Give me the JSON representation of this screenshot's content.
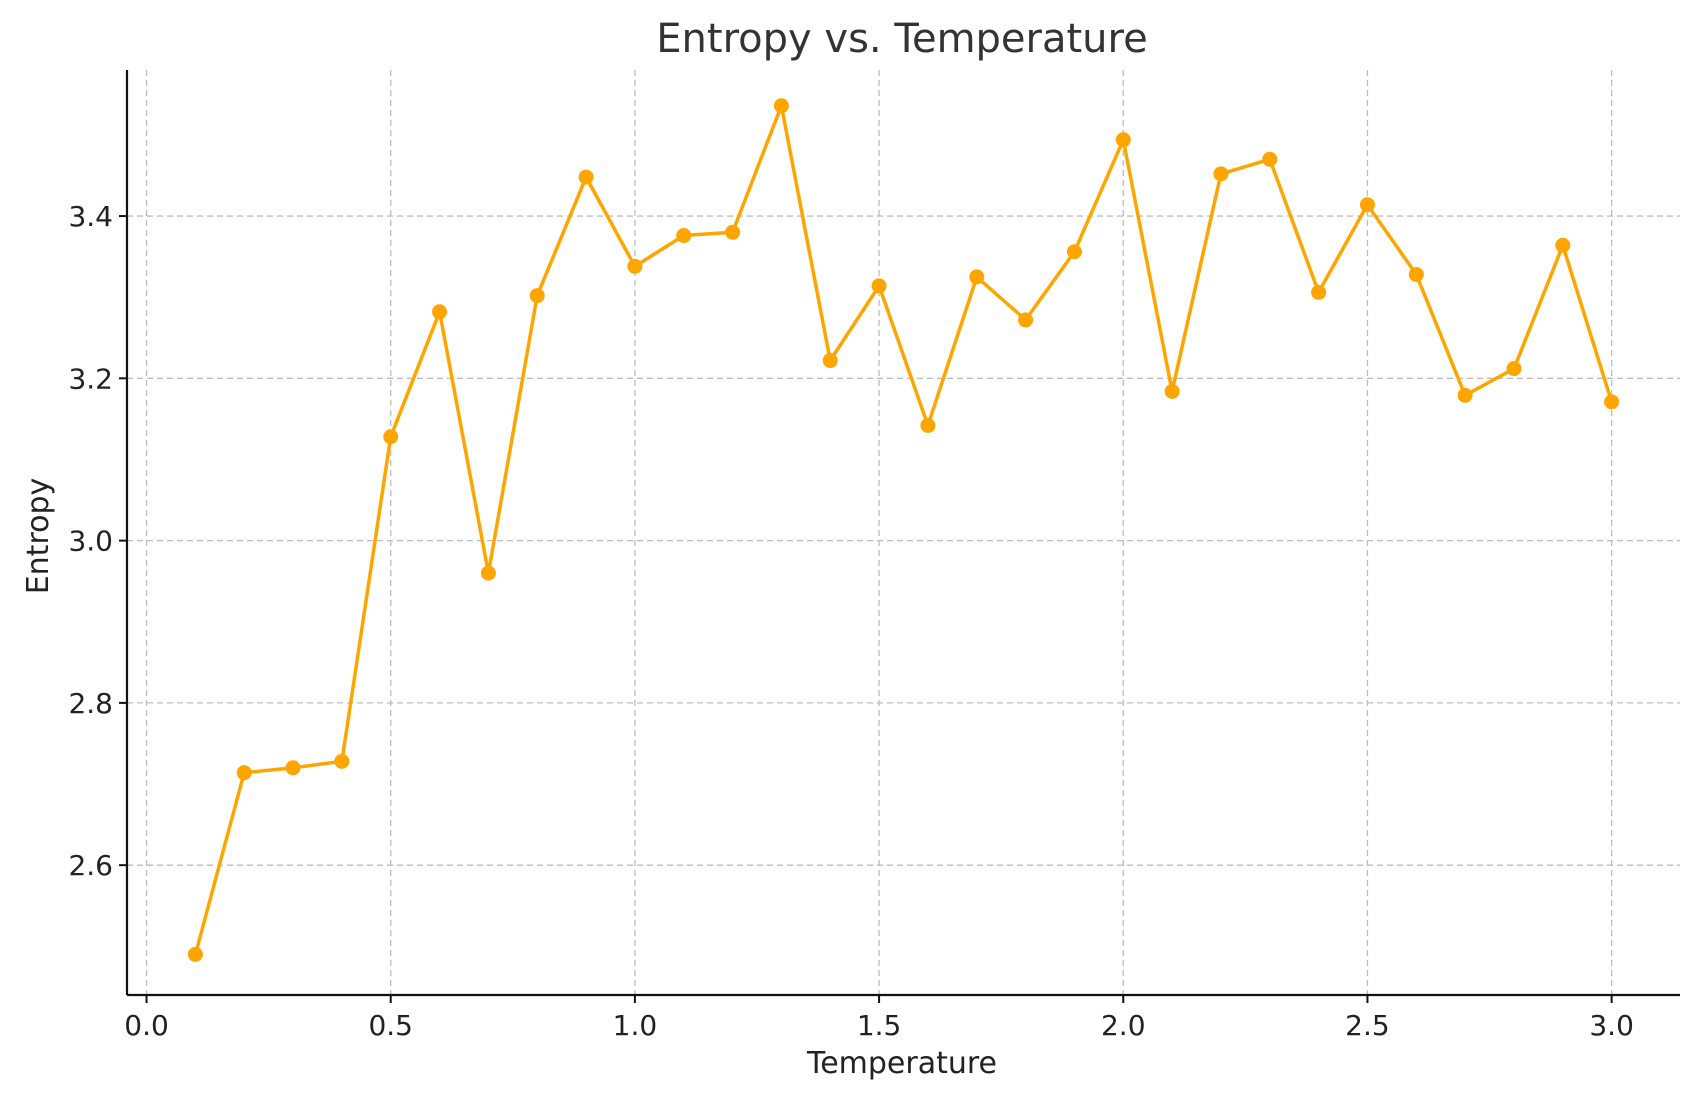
{
  "chart_data": {
    "type": "line",
    "title": "Entropy vs. Temperature",
    "xlabel": "Temperature",
    "ylabel": "Entropy",
    "xlim": [
      -0.04,
      3.14
    ],
    "ylim": [
      2.44,
      3.58
    ],
    "xticks": [
      0.0,
      0.5,
      1.0,
      1.5,
      2.0,
      2.5,
      3.0
    ],
    "xtick_labels": [
      "0.0",
      "0.5",
      "1.0",
      "1.5",
      "2.0",
      "2.5",
      "3.0"
    ],
    "yticks": [
      2.6,
      2.8,
      3.0,
      3.2,
      3.4
    ],
    "ytick_labels": [
      "2.6",
      "2.8",
      "3.0",
      "3.2",
      "3.4"
    ],
    "grid": true,
    "series": [
      {
        "color": "#FFA500",
        "marker": "circle",
        "x": [
          0.1,
          0.2,
          0.3,
          0.4,
          0.5,
          0.6,
          0.7,
          0.8,
          0.9,
          1.0,
          1.1,
          1.2,
          1.3,
          1.4,
          1.5,
          1.6,
          1.7,
          1.8,
          1.9,
          2.0,
          2.1,
          2.2,
          2.3,
          2.4,
          2.5,
          2.6,
          2.7,
          2.8,
          2.9,
          3.0
        ],
        "y": [
          2.49,
          2.714,
          2.72,
          2.728,
          3.128,
          3.282,
          2.96,
          3.302,
          3.448,
          3.338,
          3.376,
          3.38,
          3.536,
          3.222,
          3.314,
          3.142,
          3.325,
          3.272,
          3.356,
          3.494,
          3.184,
          3.452,
          3.47,
          3.306,
          3.414,
          3.328,
          3.179,
          3.212,
          3.364,
          3.171
        ]
      }
    ]
  }
}
